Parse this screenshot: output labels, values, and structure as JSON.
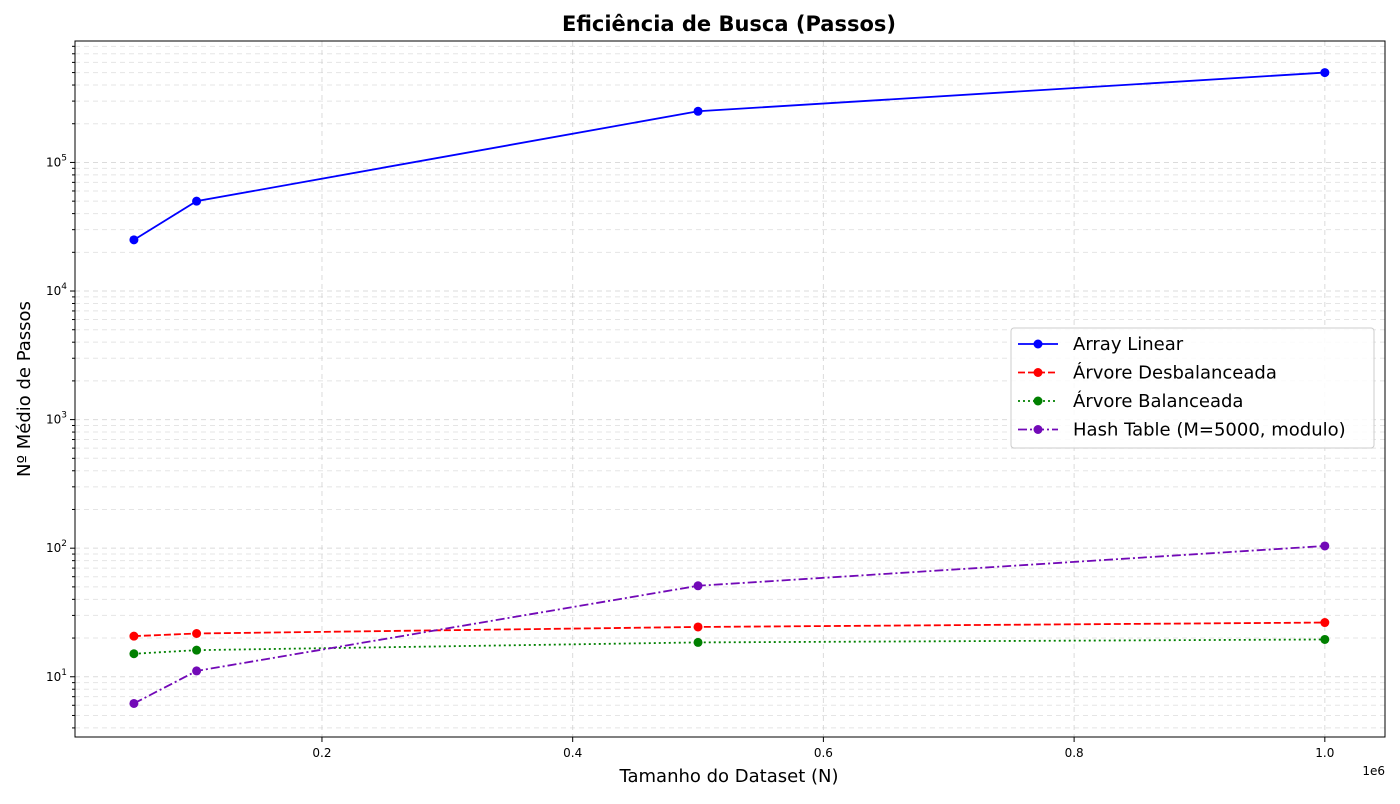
{
  "chart_data": {
    "type": "line",
    "title": "Eficiência de Busca (Passos)",
    "xlabel": "Tamanho do Dataset (N)",
    "ylabel": "Nº Médio de Passos",
    "x_scale_label": "1e6",
    "x_axis": {
      "scale": "linear",
      "range": [
        0.003,
        1.048
      ],
      "ticks": [
        0.2,
        0.4,
        0.6,
        0.8,
        1.0
      ],
      "tick_labels": [
        "0.2",
        "0.4",
        "0.6",
        "0.8",
        "1.0"
      ]
    },
    "y_axis": {
      "scale": "log",
      "range": [
        3.4,
        880000
      ],
      "ticks": [
        10,
        100,
        1000,
        10000,
        100000
      ],
      "tick_labels": [
        "10",
        "10",
        "10",
        "10",
        "10"
      ],
      "tick_exponents": [
        "1",
        "2",
        "3",
        "4",
        "5"
      ]
    },
    "grid": true,
    "legend_position": "center-right",
    "series": [
      {
        "name": "Array Linear",
        "color": "#0000ff",
        "line_style": "solid",
        "marker": "circle",
        "x": [
          0.05,
          0.1,
          0.5,
          1.0
        ],
        "y": [
          25000,
          50000,
          250000,
          500000
        ]
      },
      {
        "name": "Árvore Desbalanceada",
        "color": "#ff0000",
        "line_style": "dashed",
        "marker": "circle",
        "x": [
          0.05,
          0.1,
          0.5,
          1.0
        ],
        "y": [
          20.7,
          21.7,
          24.4,
          26.4
        ]
      },
      {
        "name": "Árvore Balanceada",
        "color": "#008000",
        "line_style": "dotted",
        "marker": "circle",
        "x": [
          0.05,
          0.1,
          0.5,
          1.0
        ],
        "y": [
          15.1,
          16.1,
          18.5,
          19.5
        ]
      },
      {
        "name": "Hash Table (M=5000, modulo)",
        "color": "#7209b7",
        "line_style": "dashdot",
        "marker": "circle",
        "x": [
          0.05,
          0.1,
          0.5,
          1.0
        ],
        "y": [
          6.2,
          11.1,
          51,
          104
        ]
      }
    ]
  }
}
